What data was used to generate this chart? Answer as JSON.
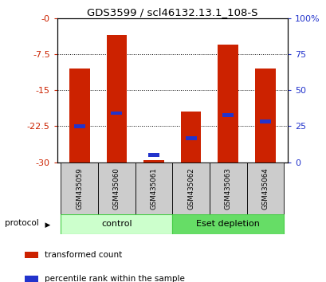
{
  "title": "GDS3599 / scl46132.13.1_108-S",
  "samples": [
    "GSM435059",
    "GSM435060",
    "GSM435061",
    "GSM435062",
    "GSM435063",
    "GSM435064"
  ],
  "red_bar_tops": [
    -10.5,
    -3.5,
    -29.5,
    -19.5,
    -5.5,
    -10.5
  ],
  "blue_positions": [
    -22.5,
    -19.8,
    -28.5,
    -25.0,
    -20.2,
    -21.5
  ],
  "ylim_left": [
    -30,
    0
  ],
  "yticks_left": [
    0,
    -7.5,
    -15,
    -22.5,
    -30
  ],
  "ytick_labels_left": [
    "-0",
    "-7.5",
    "-15",
    "-22.5",
    "-30"
  ],
  "yticks_right": [
    0,
    25,
    50,
    75,
    100
  ],
  "ytick_labels_right": [
    "0",
    "25",
    "50",
    "75",
    "100%"
  ],
  "groups": [
    {
      "label": "control",
      "indices": [
        0,
        1,
        2
      ],
      "facecolor": "#ccffcc",
      "edgecolor": "#44cc44"
    },
    {
      "label": "Eset depletion",
      "indices": [
        3,
        4,
        5
      ],
      "facecolor": "#66dd66",
      "edgecolor": "#44cc44"
    }
  ],
  "bar_width": 0.55,
  "blue_bar_width": 0.3,
  "blue_bar_height": 0.7,
  "red_color": "#cc2200",
  "blue_color": "#2233cc",
  "axis_color_left": "#cc2200",
  "axis_color_right": "#2233cc",
  "sample_bg": "#cccccc",
  "legend_red_label": "transformed count",
  "legend_blue_label": "percentile rank within the sample",
  "protocol_label": "protocol"
}
